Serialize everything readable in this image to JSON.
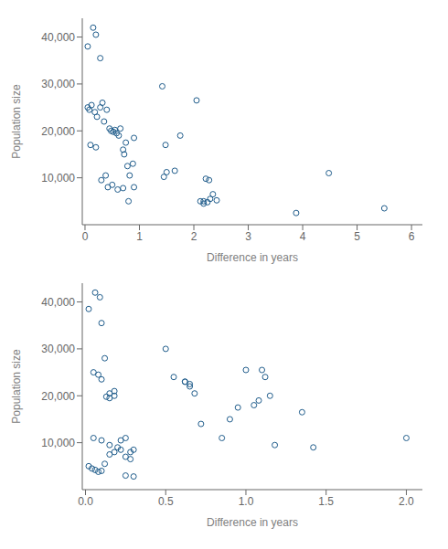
{
  "chart_data": [
    {
      "type": "scatter",
      "x": [
        0.05,
        0.15,
        0.2,
        0.28,
        0.05,
        0.08,
        0.12,
        0.18,
        0.22,
        0.28,
        0.32,
        0.35,
        0.4,
        0.45,
        0.48,
        0.52,
        0.55,
        0.58,
        0.62,
        0.65,
        0.7,
        0.72,
        0.75,
        0.78,
        0.82,
        0.88,
        0.9,
        1.42,
        1.48,
        1.5,
        1.75,
        2.05,
        2.12,
        2.18,
        2.22,
        2.28,
        2.35,
        2.42,
        3.88,
        4.48,
        5.5,
        0.1,
        0.2,
        0.3,
        0.38,
        0.42,
        0.5,
        0.6,
        0.7,
        0.8,
        0.9,
        1.45,
        1.65,
        2.18,
        2.25,
        2.3
      ],
      "values": [
        38000,
        42000,
        40500,
        35500,
        25000,
        24500,
        25500,
        24000,
        23000,
        25000,
        26000,
        22000,
        24500,
        20500,
        20000,
        19800,
        20200,
        19500,
        19000,
        20500,
        16000,
        15000,
        17500,
        12500,
        10500,
        13000,
        18500,
        29500,
        17000,
        11200,
        19000,
        26500,
        5000,
        4500,
        9800,
        9500,
        6500,
        5200,
        2500,
        11000,
        3500,
        17000,
        16500,
        9500,
        10500,
        8000,
        8500,
        7500,
        7800,
        5000,
        8000,
        10200,
        11500,
        5000,
        4800,
        5500
      ],
      "xlabel": "Difference in years",
      "ylabel": "Population size",
      "xlim": [
        -0.05,
        6.2
      ],
      "ylim": [
        0,
        44000
      ],
      "xticks": [
        0,
        1,
        2,
        3,
        4,
        5,
        6
      ],
      "yticks": [
        {
          "value": 10000,
          "label": "10,000"
        },
        {
          "value": 20000,
          "label": "20,000"
        },
        {
          "value": 30000,
          "label": "30,000"
        },
        {
          "value": 40000,
          "label": "40,000"
        }
      ],
      "color": "#1f5c8b",
      "marker": "circle",
      "grid": false
    },
    {
      "type": "scatter",
      "x": [
        0.02,
        0.06,
        0.09,
        0.1,
        0.12,
        0.15,
        0.18,
        0.05,
        0.08,
        0.1,
        0.13,
        0.15,
        0.18,
        0.22,
        0.25,
        0.28,
        0.3,
        0.02,
        0.04,
        0.06,
        0.08,
        0.1,
        0.12,
        0.15,
        0.18,
        0.22,
        0.25,
        0.28,
        0.05,
        0.1,
        0.15,
        0.2,
        0.25,
        0.3,
        0.55,
        0.62,
        0.65,
        0.68,
        0.72,
        0.85,
        0.9,
        1.0,
        1.05,
        1.1,
        1.12,
        1.15,
        1.35,
        2.0,
        0.5,
        0.62,
        0.65,
        0.95,
        1.08,
        1.18,
        1.42
      ],
      "values": [
        38500,
        42000,
        41000,
        35500,
        28000,
        20500,
        21000,
        25000,
        24500,
        23500,
        19800,
        19500,
        20000,
        10500,
        11000,
        8000,
        8500,
        5000,
        4500,
        4200,
        3800,
        4000,
        5500,
        7500,
        8000,
        8500,
        7000,
        6500,
        11000,
        10500,
        9500,
        9000,
        3000,
        2800,
        24000,
        23000,
        22500,
        20500,
        14000,
        11000,
        15000,
        25500,
        18000,
        25500,
        24000,
        20000,
        16500,
        11000,
        30000,
        23000,
        22000,
        17500,
        19000,
        9500,
        9000
      ],
      "xlabel": "Difference in years",
      "ylabel": "Population size",
      "xlim": [
        -0.02,
        2.1
      ],
      "ylim": [
        0,
        44000
      ],
      "xticks": [
        {
          "value": 0,
          "label": "0.0"
        },
        0.5,
        {
          "value": 1,
          "label": "1.0"
        },
        1.5,
        {
          "value": 2,
          "label": "2.0"
        }
      ],
      "yticks": [
        {
          "value": 10000,
          "label": "10,000"
        },
        {
          "value": 20000,
          "label": "20,000"
        },
        {
          "value": 30000,
          "label": "30,000"
        },
        {
          "value": 40000,
          "label": "40,000"
        }
      ],
      "color": "#1f5c8b",
      "marker": "circle",
      "grid": false
    }
  ]
}
